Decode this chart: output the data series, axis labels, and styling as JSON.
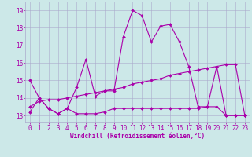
{
  "background_color": "#cce8e8",
  "grid_color": "#aaaacc",
  "line_color": "#aa00aa",
  "xlabel": "Windchill (Refroidissement éolien,°C)",
  "ylabel_ticks": [
    13,
    14,
    15,
    16,
    17,
    18,
    19
  ],
  "xlim": [
    -0.5,
    23.5
  ],
  "ylim": [
    12.6,
    19.5
  ],
  "xticks": [
    0,
    1,
    2,
    3,
    4,
    5,
    6,
    7,
    8,
    9,
    10,
    11,
    12,
    13,
    14,
    15,
    16,
    17,
    18,
    19,
    20,
    21,
    22,
    23
  ],
  "series1_x": [
    0,
    1,
    2,
    3,
    4,
    5,
    6,
    7,
    8,
    9,
    10,
    11,
    12,
    13,
    14,
    15,
    16,
    17,
    18,
    19,
    20,
    21,
    22,
    23
  ],
  "series1_y": [
    15.0,
    14.0,
    13.4,
    13.1,
    13.4,
    14.6,
    16.2,
    14.1,
    14.4,
    14.4,
    17.5,
    19.0,
    18.7,
    17.2,
    18.1,
    18.2,
    17.2,
    15.8,
    13.5,
    13.5,
    15.8,
    13.0,
    13.0,
    13.0
  ],
  "series2_x": [
    0,
    1,
    2,
    3,
    4,
    5,
    6,
    7,
    8,
    9,
    10,
    11,
    12,
    13,
    14,
    15,
    16,
    17,
    18,
    19,
    20,
    21,
    22,
    23
  ],
  "series2_y": [
    13.2,
    14.0,
    13.4,
    13.1,
    13.4,
    13.1,
    13.1,
    13.1,
    13.2,
    13.4,
    13.4,
    13.4,
    13.4,
    13.4,
    13.4,
    13.4,
    13.4,
    13.4,
    13.4,
    13.5,
    13.5,
    13.0,
    13.0,
    13.0
  ],
  "series3_x": [
    0,
    1,
    2,
    3,
    4,
    5,
    6,
    7,
    8,
    9,
    10,
    11,
    12,
    13,
    14,
    15,
    16,
    17,
    18,
    19,
    20,
    21,
    22,
    23
  ],
  "series3_y": [
    13.5,
    13.8,
    13.9,
    13.9,
    14.0,
    14.1,
    14.2,
    14.3,
    14.4,
    14.5,
    14.6,
    14.8,
    14.9,
    15.0,
    15.1,
    15.3,
    15.4,
    15.5,
    15.6,
    15.7,
    15.8,
    15.9,
    15.9,
    13.0
  ],
  "xlabel_fontsize": 5.5,
  "tick_fontsize": 5.5
}
